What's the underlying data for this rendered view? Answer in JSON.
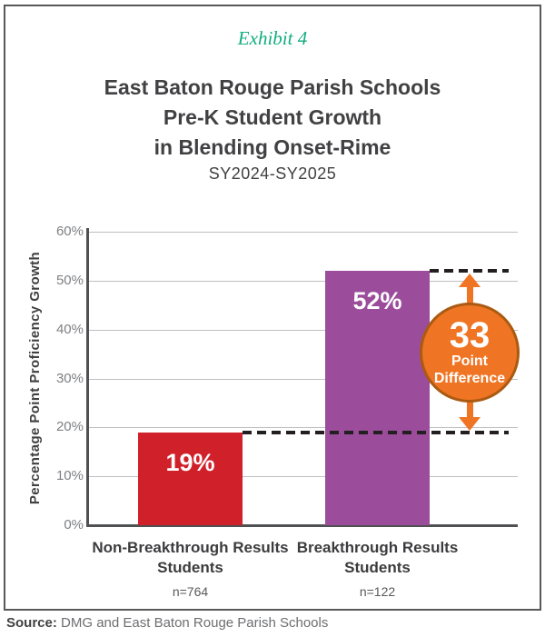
{
  "exhibit_label": "Exhibit 4",
  "title_lines": [
    "East Baton Rouge Parish Schools",
    "Pre-K Student Growth",
    "in Blending Onset-Rime"
  ],
  "subtitle": "SY2024-SY2025",
  "source": {
    "label": "Source:",
    "text": " DMG and East Baton Rouge Parish Schools"
  },
  "colors": {
    "exhibit_teal": "#12ac80",
    "title_gray": "#414042",
    "bar_red": "#d0212b",
    "bar_purple": "#9b4d9c",
    "annotation_orange": "#ef7423",
    "annotation_rim": "#aa5a12",
    "gridline": "#bdbfc1",
    "axis": "#4f5052",
    "dash": "#231f20"
  },
  "chart_data": {
    "type": "bar",
    "title": "East Baton Rouge Parish Schools Pre-K Student Growth in Blending Onset-Rime",
    "subtitle": "SY2024-SY2025",
    "xlabel": "",
    "ylabel": "Percentage Point Proficiency Growth",
    "ylim": [
      0,
      60
    ],
    "ytick_step": 10,
    "yticks": [
      "0%",
      "10%",
      "20%",
      "30%",
      "40%",
      "50%",
      "60%"
    ],
    "grid": true,
    "legend_position": "none",
    "categories": [
      "Non-Breakthrough Results Students",
      "Breakthrough Results Students"
    ],
    "values": [
      19,
      52
    ],
    "bars": [
      {
        "name": "non-breakthrough",
        "label_line1": "Non-Breakthrough Results",
        "label_line2": "Students",
        "n_label": "n=764",
        "value": 19,
        "value_label": "19%",
        "color": "#d0212b"
      },
      {
        "name": "breakthrough",
        "label_line1": "Breakthrough Results",
        "label_line2": "Students",
        "n_label": "n=122",
        "value": 52,
        "value_label": "52%",
        "color": "#9b4d9c"
      }
    ],
    "annotation": {
      "number": "33",
      "word1": "Point",
      "word2": "Difference",
      "meaning": "difference between 52% and 19% marked with dashed reference lines and a double-headed arrow",
      "color": "#ef7423"
    }
  }
}
